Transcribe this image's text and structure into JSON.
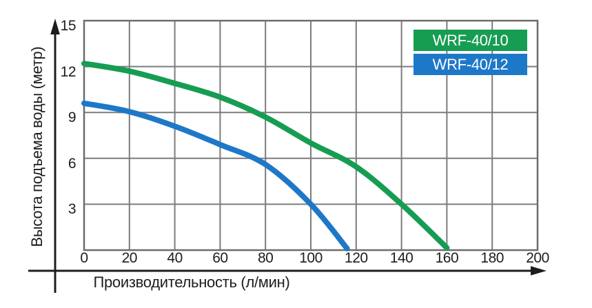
{
  "colors": {
    "background": "#ffffff",
    "grid_line": "#7b7b7b",
    "grid_border": "#6b6b6b",
    "axis_line": "#1d1d1b",
    "text": "#1d1d1b",
    "legend_text": "#ffffff",
    "series_green": "#169d52",
    "series_blue": "#1e78c8"
  },
  "chart_data": {
    "type": "line",
    "xlabel": "Производительность (л/мин)",
    "ylabel": "Высота подъема воды (метр)",
    "x_ticks": [
      0,
      20,
      40,
      60,
      80,
      100,
      120,
      140,
      160,
      180,
      200
    ],
    "y_ticks": [
      15,
      12,
      9,
      6,
      3
    ],
    "xlim": [
      0,
      200
    ],
    "ylim": [
      0,
      15
    ],
    "grid": true,
    "legend_position": "top-right",
    "series": [
      {
        "name": "WRF-40/10",
        "color": "#169d52",
        "points": [
          [
            0,
            12.2
          ],
          [
            20,
            11.7
          ],
          [
            40,
            10.9
          ],
          [
            60,
            10.0
          ],
          [
            80,
            8.7
          ],
          [
            100,
            7.0
          ],
          [
            120,
            5.45
          ],
          [
            140,
            3.0
          ],
          [
            160,
            0.15
          ]
        ]
      },
      {
        "name": "WRF-40/12",
        "color": "#1e78c8",
        "points": [
          [
            0,
            9.6
          ],
          [
            20,
            9.05
          ],
          [
            40,
            8.1
          ],
          [
            60,
            6.9
          ],
          [
            80,
            5.6
          ],
          [
            100,
            3.0
          ],
          [
            116,
            0.1
          ]
        ]
      }
    ]
  }
}
